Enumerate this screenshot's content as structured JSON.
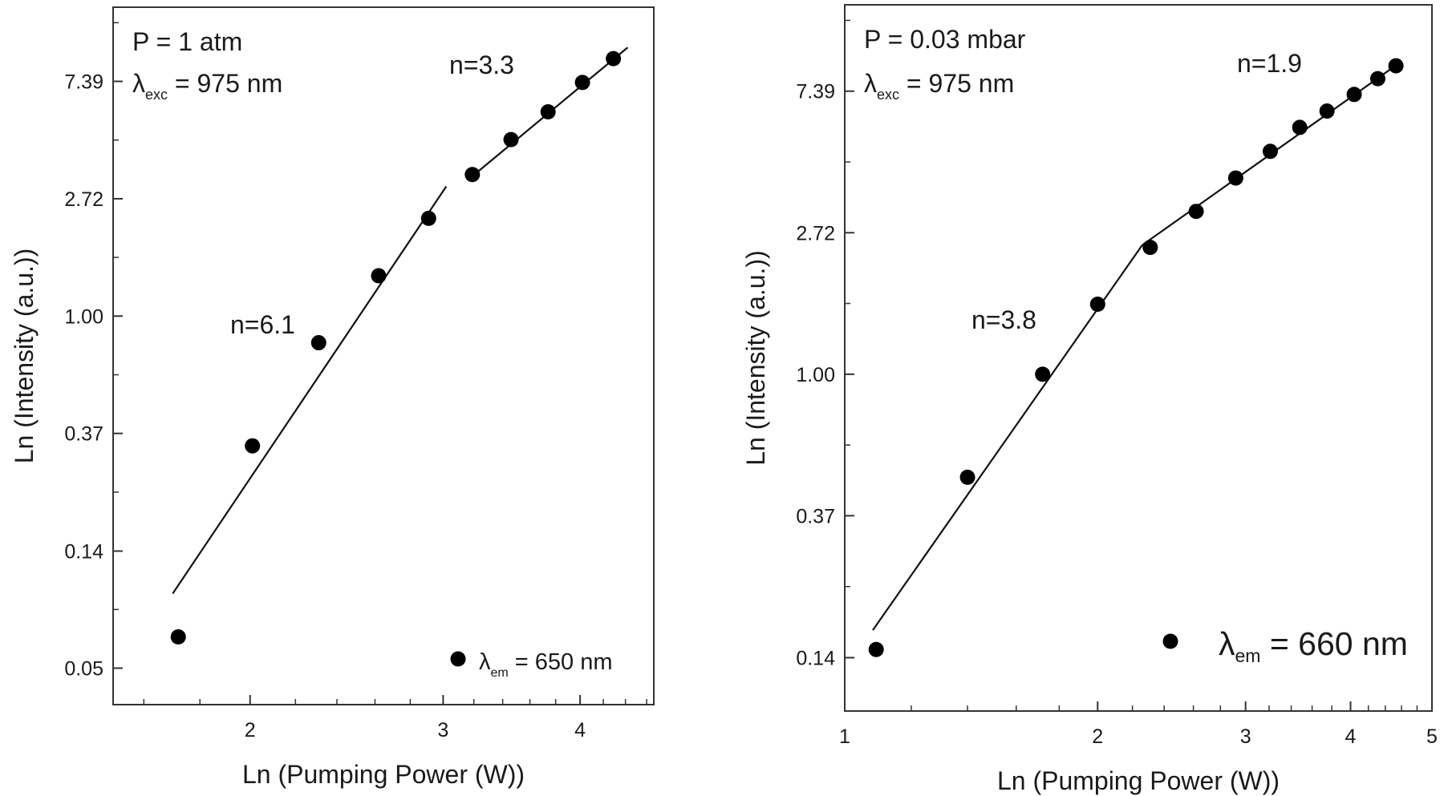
{
  "chart_data": [
    {
      "type": "scatter",
      "xlabel": "Ln (Pumping Power (W))",
      "ylabel": "Ln (Intensity (a.u.))",
      "xscale": "log",
      "yscale": "log",
      "xlim": [
        1.5,
        4.67
      ],
      "ylim": [
        0.0365,
        13.9
      ],
      "xticks": [
        {
          "v": 2,
          "label": "2"
        },
        {
          "v": 3,
          "label": "3"
        },
        {
          "v": 4,
          "label": "4"
        }
      ],
      "xminor": [
        1.6,
        1.8,
        2.2,
        2.4,
        2.6,
        2.8,
        3.2,
        3.4,
        3.6,
        3.8,
        4.2,
        4.4,
        4.6
      ],
      "yticks": [
        {
          "v": 7.389,
          "label": "7.39"
        },
        {
          "v": 2.718,
          "label": "2.72"
        },
        {
          "v": 1.0,
          "label": "1.00"
        },
        {
          "v": 0.368,
          "label": "0.37"
        },
        {
          "v": 0.135,
          "label": "0.14"
        },
        {
          "v": 0.0498,
          "label": "0.05"
        }
      ],
      "annotations": {
        "pressure": "P = 1 atm",
        "excitation": "λ",
        "excitation_sub": "exc",
        "excitation_rest": " = 975 nm",
        "fit_high": "n=3.3",
        "fit_low": "n=6.1"
      },
      "legend": {
        "symbol": "λ",
        "sub": "em",
        "rest": " = 650 nm",
        "placement": "bottom-right"
      },
      "series": [
        {
          "name": "λem = 650 nm",
          "x": [
            1.72,
            2.01,
            2.31,
            2.62,
            2.91,
            3.19,
            3.46,
            3.74,
            4.02,
            4.29
          ],
          "y": [
            0.065,
            0.331,
            0.797,
            1.41,
            2.3,
            3.34,
            4.5,
            5.7,
            7.32,
            8.97
          ]
        }
      ],
      "fits": [
        {
          "label": "n=6.1",
          "slope": 6.1,
          "x": [
            1.7,
            3.02
          ],
          "y": [
            0.094,
            3.02
          ]
        },
        {
          "label": "n=3.3",
          "slope": 3.3,
          "x": [
            3.16,
            4.42
          ],
          "y": [
            3.19,
            9.86
          ]
        }
      ]
    },
    {
      "type": "scatter",
      "xlabel": "Ln (Pumping Power (W))",
      "ylabel": "Ln (Intensity (a.u.))",
      "xscale": "log",
      "yscale": "log",
      "xlim": [
        1,
        5
      ],
      "ylim": [
        0.0926,
        13.6
      ],
      "xticks": [
        {
          "v": 1,
          "label": "1"
        },
        {
          "v": 2,
          "label": "2"
        },
        {
          "v": 3,
          "label": "3"
        },
        {
          "v": 4,
          "label": "4"
        },
        {
          "v": 5,
          "label": "5"
        }
      ],
      "xminor": [
        1.2,
        1.4,
        1.6,
        1.8,
        2.2,
        2.4,
        2.6,
        2.8,
        3.2,
        3.4,
        3.6,
        3.8,
        4.2,
        4.4,
        4.6,
        4.8
      ],
      "yticks": [
        {
          "v": 7.389,
          "label": "7.39"
        },
        {
          "v": 2.718,
          "label": "2.72"
        },
        {
          "v": 1.0,
          "label": "1.00"
        },
        {
          "v": 0.368,
          "label": "0.37"
        },
        {
          "v": 0.135,
          "label": "0.14"
        }
      ],
      "annotations": {
        "pressure": "P = 0.03 mbar",
        "excitation": "λ",
        "excitation_sub": "exc",
        "excitation_rest": " = 975 nm",
        "fit_high": "n=1.9",
        "fit_low": "n=3.8"
      },
      "legend": {
        "symbol": "λ",
        "sub": "em",
        "rest": " = 660 nm",
        "placement": "bottom-right"
      },
      "series": [
        {
          "name": "λem = 660 nm",
          "x": [
            1.09,
            1.4,
            1.72,
            2.0,
            2.31,
            2.62,
            2.92,
            3.21,
            3.48,
            3.75,
            4.04,
            4.31,
            4.53
          ],
          "y": [
            0.143,
            0.483,
            1.0,
            1.64,
            2.45,
            3.16,
            4.0,
            4.83,
            5.72,
            6.42,
            7.22,
            8.07,
            8.84
          ]
        }
      ],
      "fits": [
        {
          "label": "n=3.8",
          "slope": 3.8,
          "x": [
            1.08,
            2.26
          ],
          "y": [
            0.164,
            2.49
          ]
        },
        {
          "label": "n=1.9",
          "slope": 1.9,
          "x": [
            2.26,
            4.57
          ],
          "y": [
            2.49,
            9.01
          ]
        }
      ]
    }
  ]
}
